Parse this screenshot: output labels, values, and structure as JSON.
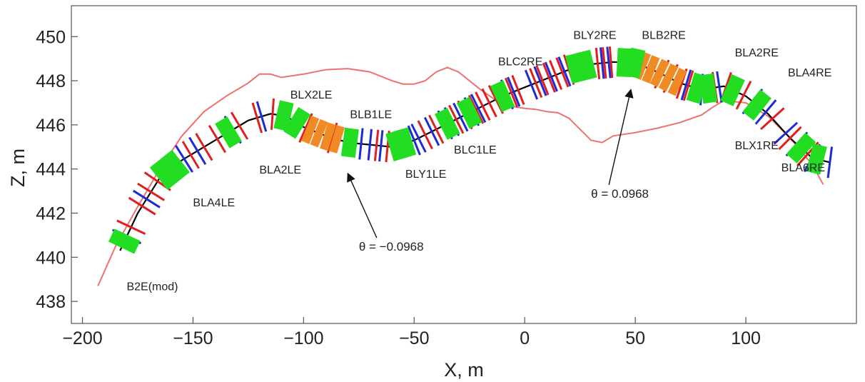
{
  "chart_data": {
    "type": "line",
    "title": "",
    "xlabel": "X, m",
    "ylabel": "Z, m",
    "xlim": [
      -205,
      150
    ],
    "ylim": [
      437,
      451.4
    ],
    "x_ticks": [
      {
        "value": -200,
        "label": "−200"
      },
      {
        "value": -150,
        "label": "−150"
      },
      {
        "value": -100,
        "label": "−100"
      },
      {
        "value": -50,
        "label": "−50"
      },
      {
        "value": 0,
        "label": "0"
      },
      {
        "value": 50,
        "label": "50"
      },
      {
        "value": 100,
        "label": "100"
      }
    ],
    "y_ticks": [
      {
        "value": 438,
        "label": "438"
      },
      {
        "value": 440,
        "label": "440"
      },
      {
        "value": 442,
        "label": "442"
      },
      {
        "value": 444,
        "label": "444"
      },
      {
        "value": 446,
        "label": "446"
      },
      {
        "value": 448,
        "label": "448"
      },
      {
        "value": 450,
        "label": "450"
      }
    ],
    "series": [
      {
        "role": "beamline",
        "color": "#000000",
        "x": [
          -183,
          -175,
          -165,
          -155,
          -145,
          -135,
          -125,
          -115,
          -108,
          -100,
          -90,
          -80,
          -70,
          -60,
          -50,
          -40,
          -30,
          -20,
          -10,
          0,
          10,
          20,
          30,
          40,
          50,
          60,
          70,
          80,
          90,
          100,
          110,
          120,
          130,
          138
        ],
        "y": [
          440.3,
          442.0,
          443.6,
          444.4,
          445.0,
          445.6,
          446.2,
          446.5,
          446.4,
          445.9,
          445.5,
          445.2,
          445.1,
          445.0,
          445.3,
          445.8,
          446.3,
          446.8,
          447.3,
          447.7,
          448.1,
          448.5,
          448.75,
          448.85,
          448.8,
          448.4,
          447.9,
          447.6,
          447.75,
          447.3,
          446.5,
          445.4,
          444.5,
          444.3
        ]
      },
      {
        "role": "envelope",
        "color": "#f07070",
        "x": [
          -193,
          -185,
          -175,
          -165,
          -155,
          -145,
          -135,
          -125,
          -120,
          -115,
          -110,
          -100,
          -90,
          -80,
          -70,
          -60,
          -55,
          -50,
          -45,
          -40,
          -35,
          -30,
          -20,
          -10,
          0,
          5,
          10,
          15,
          20,
          25,
          30,
          35,
          40,
          50,
          60,
          70,
          80,
          85,
          90,
          100,
          110,
          120,
          130,
          135
        ],
        "y": [
          438.7,
          440.5,
          442.3,
          444.0,
          445.5,
          446.6,
          447.3,
          447.9,
          448.3,
          448.3,
          448.15,
          448.3,
          448.5,
          448.55,
          448.4,
          448.0,
          447.85,
          447.85,
          448.0,
          448.4,
          448.6,
          448.4,
          447.6,
          446.9,
          446.75,
          446.7,
          446.6,
          446.55,
          446.3,
          445.8,
          445.3,
          445.2,
          445.5,
          445.65,
          445.85,
          446.1,
          446.45,
          446.8,
          447.1,
          447.0,
          446.4,
          445.4,
          444.2,
          443.3
        ]
      }
    ],
    "magnet_blocks": {
      "green": [
        -181,
        -163,
        -158,
        -134,
        -109,
        -103,
        -79,
        -58,
        -54,
        -35,
        -25,
        -10,
        23,
        28,
        45,
        50,
        78,
        83,
        94,
        105,
        125,
        132
      ],
      "orange": [
        -97,
        -93,
        -89,
        -85,
        53,
        57,
        61,
        65,
        69
      ],
      "red_ticks": [
        -178,
        -173,
        -169,
        -166,
        -151,
        -145,
        -139,
        -129,
        -121,
        -114,
        -99,
        -87,
        -67,
        -62,
        -45,
        -40,
        -31,
        -27,
        -22,
        -19,
        -16,
        -13,
        -6,
        -3,
        5,
        8,
        11,
        14,
        17,
        20,
        33,
        36,
        39,
        62,
        66,
        71,
        74,
        86,
        91,
        99,
        112,
        120,
        128
      ],
      "blue_ticks": [
        -180,
        -171,
        -154,
        -148,
        -132,
        -119,
        -74,
        -70,
        -65,
        -50,
        -48,
        -42,
        -36,
        -33,
        -29,
        -24,
        -21,
        -8,
        -5,
        3,
        7,
        12,
        18,
        35,
        38,
        73,
        80,
        88,
        103,
        109,
        118,
        123,
        130,
        138
      ]
    },
    "labels": [
      {
        "text": "B2E(mod)",
        "x": -180,
        "z": 438.5
      },
      {
        "text": "BLA4LE",
        "x": -150,
        "z": 442.3
      },
      {
        "text": "BLA2LE",
        "x": -120,
        "z": 443.8
      },
      {
        "text": "BLX2LE",
        "x": -106,
        "z": 447.2
      },
      {
        "text": "BLB1LE",
        "x": -79,
        "z": 446.3
      },
      {
        "text": "BLY1LE",
        "x": -54,
        "z": 443.6
      },
      {
        "text": "BLC1LE",
        "x": -32,
        "z": 444.7
      },
      {
        "text": "BLC2RE",
        "x": -12,
        "z": 448.7
      },
      {
        "text": "BLY2RE",
        "x": 22,
        "z": 449.9
      },
      {
        "text": "BLB2RE",
        "x": 53,
        "z": 449.9
      },
      {
        "text": "BLA2RE",
        "x": 95,
        "z": 449.1
      },
      {
        "text": "BLA4RE",
        "x": 119,
        "z": 448.2
      },
      {
        "text": "BLX1RE",
        "x": 95,
        "z": 444.9
      },
      {
        "text": "BLA6RE",
        "x": 116,
        "z": 443.9
      }
    ],
    "annotations": [
      {
        "text": "θ = −0.0968",
        "x": -75,
        "z": 440.3,
        "arrow_to": [
          -80,
          443.8
        ]
      },
      {
        "text": "θ = 0.0968",
        "x": 30,
        "z": 442.7,
        "arrow_to": [
          48,
          447.6
        ]
      }
    ]
  }
}
